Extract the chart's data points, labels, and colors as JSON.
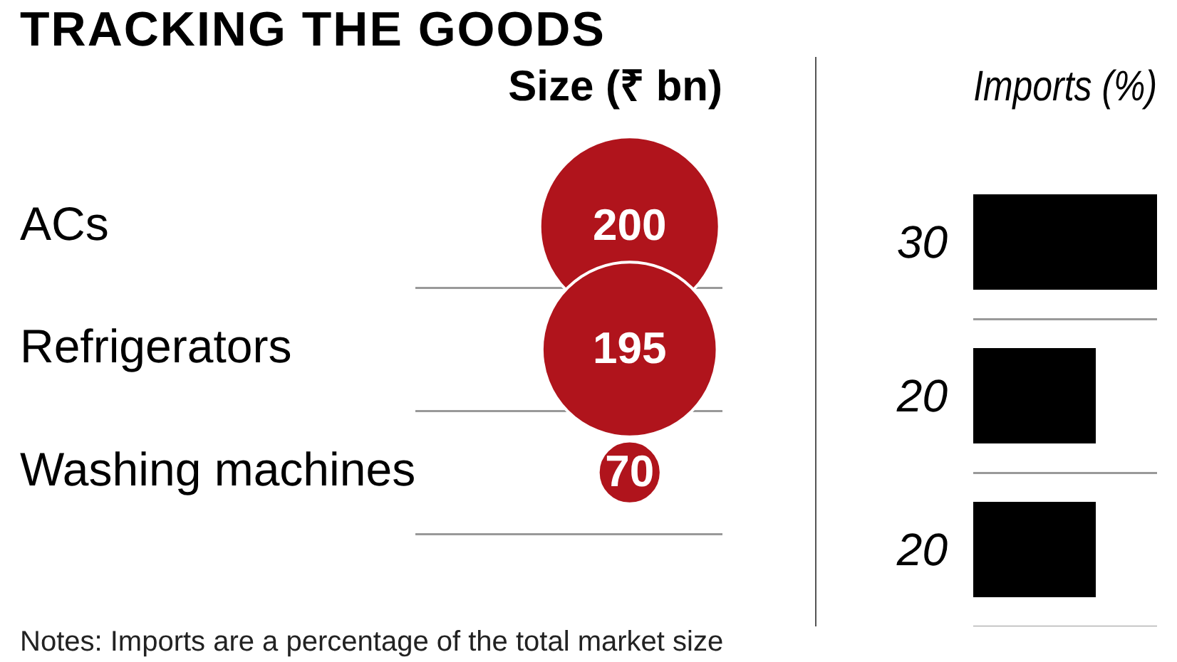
{
  "chart_data": [
    {
      "type": "other",
      "title": "TRACKING THE GOODS",
      "xlabel": "Size (₹ bn)",
      "categories": [
        "ACs",
        "Refrigerators",
        "Washing machines"
      ],
      "values": [
        200,
        195,
        70
      ],
      "color": "#b0141c",
      "data_labels": true,
      "annotations": [
        "Notes: Imports are a percentage of the total market size"
      ]
    },
    {
      "type": "bar",
      "orientation": "horizontal",
      "xlabel": "Imports (%)",
      "categories": [
        null,
        null,
        null
      ],
      "values": [
        30,
        20,
        20
      ],
      "color": "#000000",
      "data_labels": true,
      "grid": "y"
    }
  ]
}
